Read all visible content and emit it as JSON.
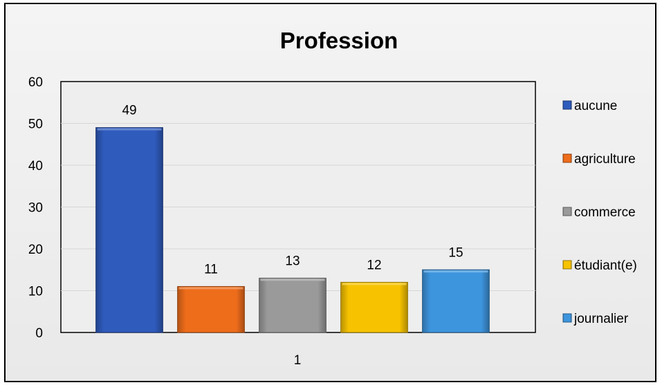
{
  "chart_data": {
    "type": "bar",
    "title": "Profession",
    "categories": [
      "1"
    ],
    "series": [
      {
        "name": "aucune",
        "values": [
          49
        ],
        "color": "#2f5bbd"
      },
      {
        "name": "agriculture",
        "values": [
          11
        ],
        "color": "#ee6d1b"
      },
      {
        "name": "commerce",
        "values": [
          13
        ],
        "color": "#9a9a9a"
      },
      {
        "name": "étudiant(e)",
        "values": [
          12
        ],
        "color": "#f7c300"
      },
      {
        "name": "journalier",
        "values": [
          15
        ],
        "color": "#3d95de"
      }
    ],
    "ylim": [
      0,
      60
    ],
    "yticks": [
      "0",
      "10",
      "20",
      "30",
      "40",
      "50",
      "60"
    ],
    "xlabel": "",
    "ylabel": "",
    "grid": true,
    "legend_position": "right",
    "data_labels": true
  }
}
